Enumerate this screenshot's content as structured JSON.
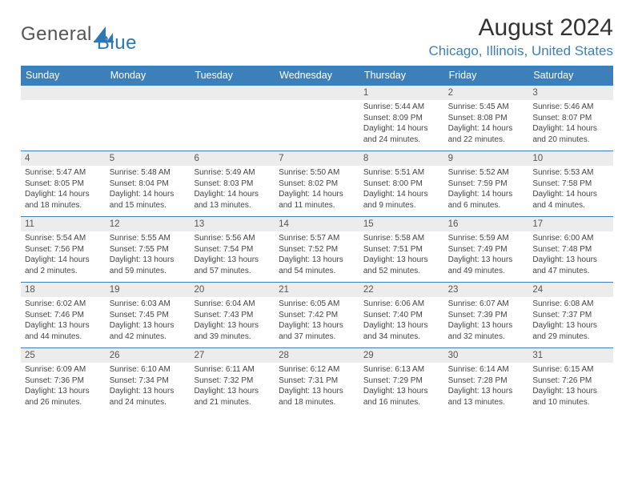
{
  "logo": {
    "text1": "General",
    "text2": "Blue",
    "accent": "#2e77b6"
  },
  "title": "August 2024",
  "location": "Chicago, Illinois, United States",
  "colors": {
    "header_bg": "#3d7fb8",
    "header_fg": "#ffffff",
    "band_bg": "#ececec",
    "rule": "#3d7fb8",
    "text": "#444444",
    "location": "#3d7fb8"
  },
  "daysOfWeek": [
    "Sunday",
    "Monday",
    "Tuesday",
    "Wednesday",
    "Thursday",
    "Friday",
    "Saturday"
  ],
  "weeks": [
    [
      {
        "n": "",
        "sr": "",
        "ss": "",
        "dl1": "",
        "dl2": ""
      },
      {
        "n": "",
        "sr": "",
        "ss": "",
        "dl1": "",
        "dl2": ""
      },
      {
        "n": "",
        "sr": "",
        "ss": "",
        "dl1": "",
        "dl2": ""
      },
      {
        "n": "",
        "sr": "",
        "ss": "",
        "dl1": "",
        "dl2": ""
      },
      {
        "n": "1",
        "sr": "Sunrise: 5:44 AM",
        "ss": "Sunset: 8:09 PM",
        "dl1": "Daylight: 14 hours",
        "dl2": "and 24 minutes."
      },
      {
        "n": "2",
        "sr": "Sunrise: 5:45 AM",
        "ss": "Sunset: 8:08 PM",
        "dl1": "Daylight: 14 hours",
        "dl2": "and 22 minutes."
      },
      {
        "n": "3",
        "sr": "Sunrise: 5:46 AM",
        "ss": "Sunset: 8:07 PM",
        "dl1": "Daylight: 14 hours",
        "dl2": "and 20 minutes."
      }
    ],
    [
      {
        "n": "4",
        "sr": "Sunrise: 5:47 AM",
        "ss": "Sunset: 8:05 PM",
        "dl1": "Daylight: 14 hours",
        "dl2": "and 18 minutes."
      },
      {
        "n": "5",
        "sr": "Sunrise: 5:48 AM",
        "ss": "Sunset: 8:04 PM",
        "dl1": "Daylight: 14 hours",
        "dl2": "and 15 minutes."
      },
      {
        "n": "6",
        "sr": "Sunrise: 5:49 AM",
        "ss": "Sunset: 8:03 PM",
        "dl1": "Daylight: 14 hours",
        "dl2": "and 13 minutes."
      },
      {
        "n": "7",
        "sr": "Sunrise: 5:50 AM",
        "ss": "Sunset: 8:02 PM",
        "dl1": "Daylight: 14 hours",
        "dl2": "and 11 minutes."
      },
      {
        "n": "8",
        "sr": "Sunrise: 5:51 AM",
        "ss": "Sunset: 8:00 PM",
        "dl1": "Daylight: 14 hours",
        "dl2": "and 9 minutes."
      },
      {
        "n": "9",
        "sr": "Sunrise: 5:52 AM",
        "ss": "Sunset: 7:59 PM",
        "dl1": "Daylight: 14 hours",
        "dl2": "and 6 minutes."
      },
      {
        "n": "10",
        "sr": "Sunrise: 5:53 AM",
        "ss": "Sunset: 7:58 PM",
        "dl1": "Daylight: 14 hours",
        "dl2": "and 4 minutes."
      }
    ],
    [
      {
        "n": "11",
        "sr": "Sunrise: 5:54 AM",
        "ss": "Sunset: 7:56 PM",
        "dl1": "Daylight: 14 hours",
        "dl2": "and 2 minutes."
      },
      {
        "n": "12",
        "sr": "Sunrise: 5:55 AM",
        "ss": "Sunset: 7:55 PM",
        "dl1": "Daylight: 13 hours",
        "dl2": "and 59 minutes."
      },
      {
        "n": "13",
        "sr": "Sunrise: 5:56 AM",
        "ss": "Sunset: 7:54 PM",
        "dl1": "Daylight: 13 hours",
        "dl2": "and 57 minutes."
      },
      {
        "n": "14",
        "sr": "Sunrise: 5:57 AM",
        "ss": "Sunset: 7:52 PM",
        "dl1": "Daylight: 13 hours",
        "dl2": "and 54 minutes."
      },
      {
        "n": "15",
        "sr": "Sunrise: 5:58 AM",
        "ss": "Sunset: 7:51 PM",
        "dl1": "Daylight: 13 hours",
        "dl2": "and 52 minutes."
      },
      {
        "n": "16",
        "sr": "Sunrise: 5:59 AM",
        "ss": "Sunset: 7:49 PM",
        "dl1": "Daylight: 13 hours",
        "dl2": "and 49 minutes."
      },
      {
        "n": "17",
        "sr": "Sunrise: 6:00 AM",
        "ss": "Sunset: 7:48 PM",
        "dl1": "Daylight: 13 hours",
        "dl2": "and 47 minutes."
      }
    ],
    [
      {
        "n": "18",
        "sr": "Sunrise: 6:02 AM",
        "ss": "Sunset: 7:46 PM",
        "dl1": "Daylight: 13 hours",
        "dl2": "and 44 minutes."
      },
      {
        "n": "19",
        "sr": "Sunrise: 6:03 AM",
        "ss": "Sunset: 7:45 PM",
        "dl1": "Daylight: 13 hours",
        "dl2": "and 42 minutes."
      },
      {
        "n": "20",
        "sr": "Sunrise: 6:04 AM",
        "ss": "Sunset: 7:43 PM",
        "dl1": "Daylight: 13 hours",
        "dl2": "and 39 minutes."
      },
      {
        "n": "21",
        "sr": "Sunrise: 6:05 AM",
        "ss": "Sunset: 7:42 PM",
        "dl1": "Daylight: 13 hours",
        "dl2": "and 37 minutes."
      },
      {
        "n": "22",
        "sr": "Sunrise: 6:06 AM",
        "ss": "Sunset: 7:40 PM",
        "dl1": "Daylight: 13 hours",
        "dl2": "and 34 minutes."
      },
      {
        "n": "23",
        "sr": "Sunrise: 6:07 AM",
        "ss": "Sunset: 7:39 PM",
        "dl1": "Daylight: 13 hours",
        "dl2": "and 32 minutes."
      },
      {
        "n": "24",
        "sr": "Sunrise: 6:08 AM",
        "ss": "Sunset: 7:37 PM",
        "dl1": "Daylight: 13 hours",
        "dl2": "and 29 minutes."
      }
    ],
    [
      {
        "n": "25",
        "sr": "Sunrise: 6:09 AM",
        "ss": "Sunset: 7:36 PM",
        "dl1": "Daylight: 13 hours",
        "dl2": "and 26 minutes."
      },
      {
        "n": "26",
        "sr": "Sunrise: 6:10 AM",
        "ss": "Sunset: 7:34 PM",
        "dl1": "Daylight: 13 hours",
        "dl2": "and 24 minutes."
      },
      {
        "n": "27",
        "sr": "Sunrise: 6:11 AM",
        "ss": "Sunset: 7:32 PM",
        "dl1": "Daylight: 13 hours",
        "dl2": "and 21 minutes."
      },
      {
        "n": "28",
        "sr": "Sunrise: 6:12 AM",
        "ss": "Sunset: 7:31 PM",
        "dl1": "Daylight: 13 hours",
        "dl2": "and 18 minutes."
      },
      {
        "n": "29",
        "sr": "Sunrise: 6:13 AM",
        "ss": "Sunset: 7:29 PM",
        "dl1": "Daylight: 13 hours",
        "dl2": "and 16 minutes."
      },
      {
        "n": "30",
        "sr": "Sunrise: 6:14 AM",
        "ss": "Sunset: 7:28 PM",
        "dl1": "Daylight: 13 hours",
        "dl2": "and 13 minutes."
      },
      {
        "n": "31",
        "sr": "Sunrise: 6:15 AM",
        "ss": "Sunset: 7:26 PM",
        "dl1": "Daylight: 13 hours",
        "dl2": "and 10 minutes."
      }
    ]
  ]
}
